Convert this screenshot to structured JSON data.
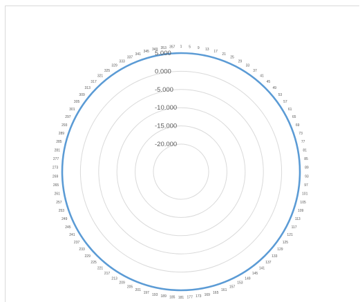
{
  "chart_data": {
    "type": "radar",
    "title": "",
    "angle_labels_from": 1,
    "angle_labels_to": 357,
    "angle_label_step": 4,
    "radial_axis": {
      "min": -20.0,
      "max": 5.0,
      "ticks": [
        -20.0,
        -15.0,
        -10.0,
        -5.0,
        0.0,
        5.0
      ],
      "tick_labels": [
        "-20.000",
        "-15.000",
        "-10.000",
        "-5.000",
        "0.000",
        "5.000"
      ]
    },
    "gridlines": true,
    "legend": "none",
    "series": [
      {
        "color": "#5b9bd5",
        "constant_value": 5.0
      }
    ]
  }
}
